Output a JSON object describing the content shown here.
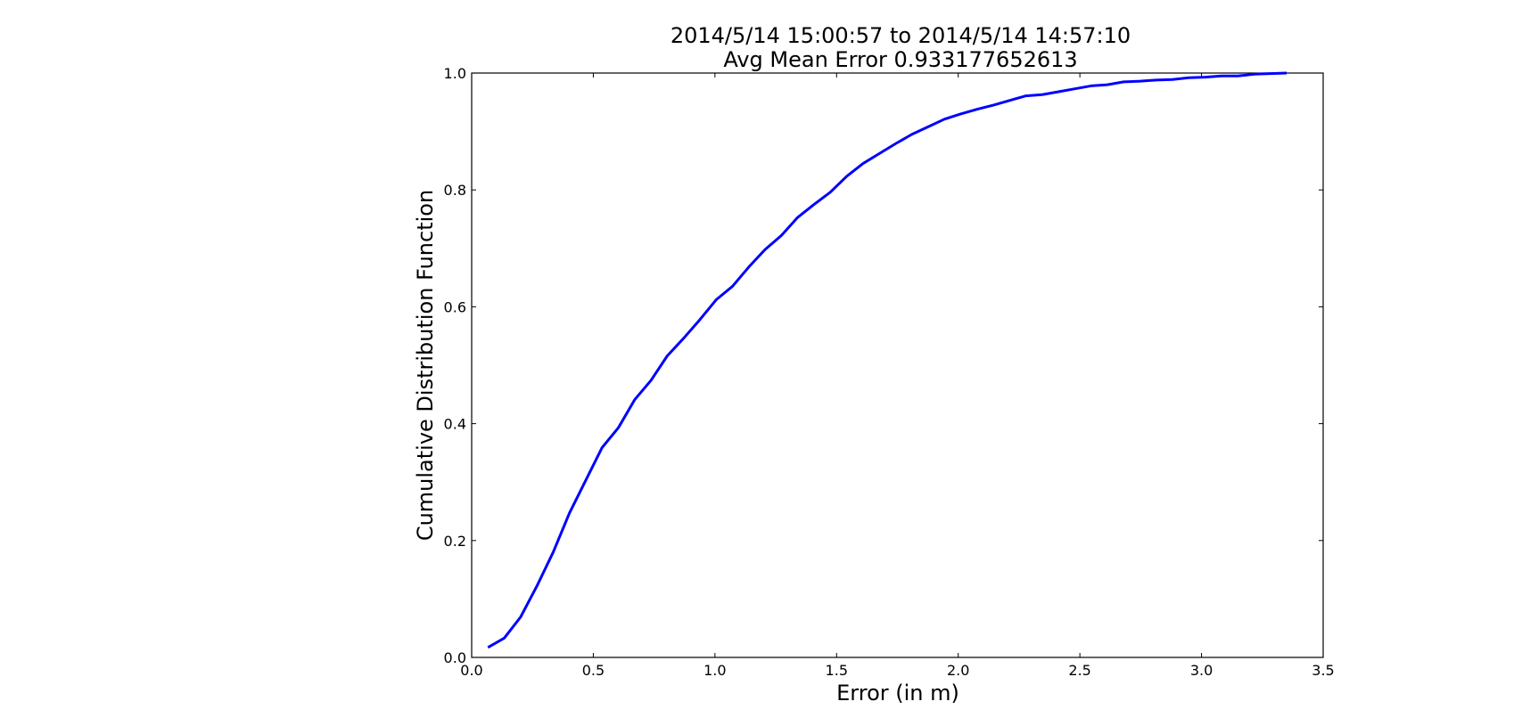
{
  "chart_data": {
    "type": "line",
    "title": "2014/5/14  15:00:57 to 2014/5/14  14:57:10",
    "subtitle": "Avg Mean Error 0.933177652613",
    "xlabel": "Error (in m)",
    "ylabel": "Cumulative Distribution Function",
    "xlim": [
      0.0,
      3.5
    ],
    "ylim": [
      0.0,
      1.0
    ],
    "xticks": [
      "0.0",
      "0.5",
      "1.0",
      "1.5",
      "2.0",
      "2.5",
      "3.0",
      "3.5"
    ],
    "yticks": [
      "0.0",
      "0.2",
      "0.4",
      "0.6",
      "0.8",
      "1.0"
    ],
    "grid": false,
    "series": [
      {
        "color": "#0000ff",
        "x": [
          0.067,
          0.134,
          0.201,
          0.268,
          0.335,
          0.402,
          0.469,
          0.536,
          0.603,
          0.67,
          0.737,
          0.804,
          0.871,
          0.938,
          1.005,
          1.072,
          1.139,
          1.206,
          1.273,
          1.34,
          1.407,
          1.474,
          1.541,
          1.608,
          1.675,
          1.742,
          1.809,
          1.876,
          1.943,
          2.01,
          2.077,
          2.144,
          2.211,
          2.278,
          2.345,
          2.412,
          2.479,
          2.546,
          2.613,
          2.68,
          2.747,
          2.814,
          2.881,
          2.948,
          3.015,
          3.082,
          3.149,
          3.216,
          3.283,
          3.35
        ],
        "y": [
          0.017,
          0.033,
          0.069,
          0.122,
          0.18,
          0.247,
          0.303,
          0.359,
          0.393,
          0.441,
          0.474,
          0.516,
          0.546,
          0.578,
          0.612,
          0.635,
          0.668,
          0.698,
          0.722,
          0.753,
          0.775,
          0.796,
          0.823,
          0.845,
          0.862,
          0.879,
          0.895,
          0.908,
          0.921,
          0.93,
          0.938,
          0.945,
          0.953,
          0.961,
          0.963,
          0.968,
          0.973,
          0.978,
          0.98,
          0.985,
          0.986,
          0.988,
          0.989,
          0.992,
          0.993,
          0.995,
          0.995,
          0.998,
          0.999,
          1.0
        ]
      }
    ]
  }
}
